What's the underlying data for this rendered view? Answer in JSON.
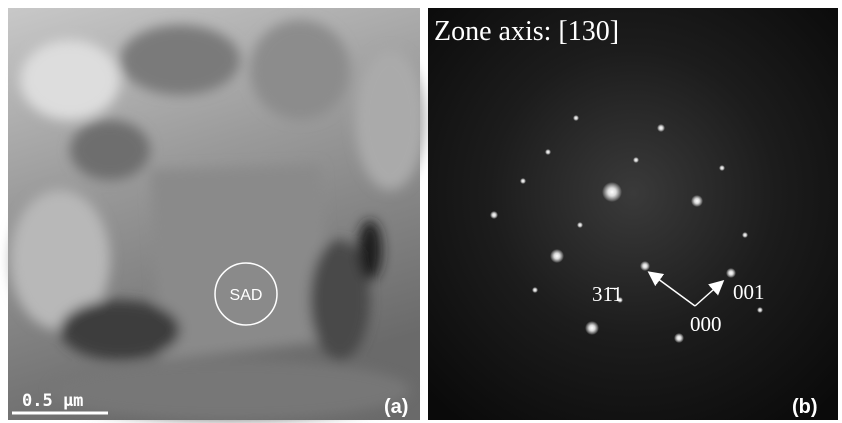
{
  "panel_a": {
    "region_label": "SAD",
    "scale_bar": "0.5 µm",
    "panel_label": "(a)"
  },
  "panel_b": {
    "title": "Zone axis: [130]",
    "spot_labels": [
      "31̄1",
      "001",
      "000"
    ],
    "panel_label": "(b)"
  }
}
